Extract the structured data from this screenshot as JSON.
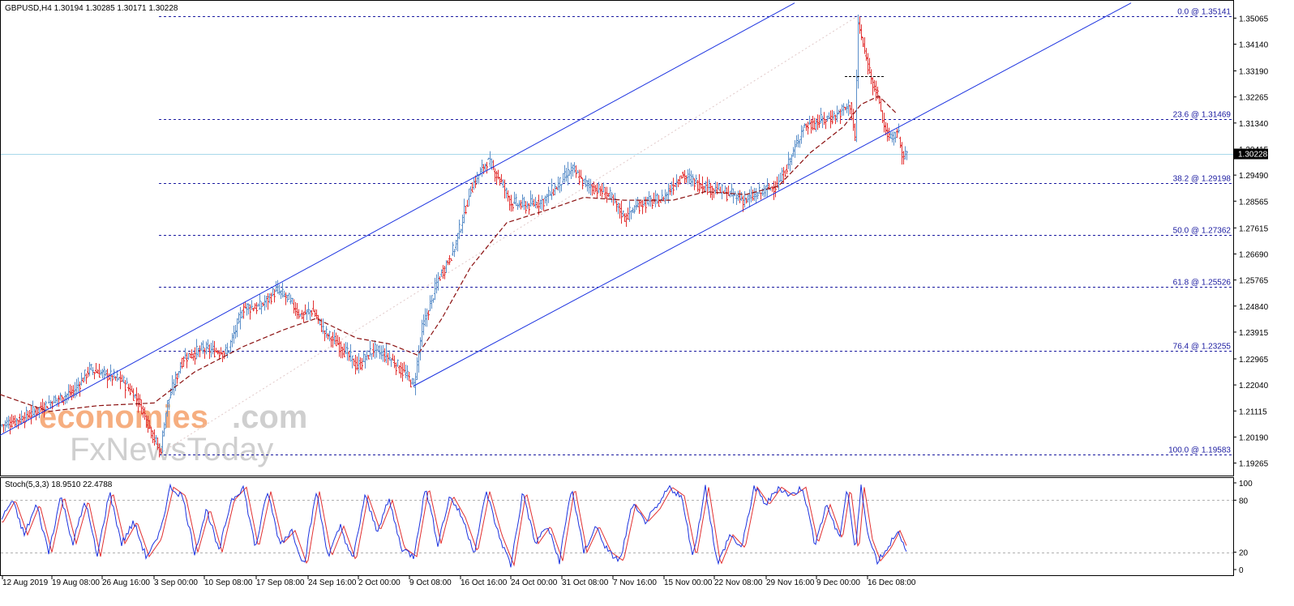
{
  "colors": {
    "up": "#5b8fc9",
    "down": "#e23030",
    "channel": "#1c33e0",
    "fib": "#1a1aa0",
    "ma": "#8b1010",
    "price_line": "#a8d8ea",
    "stoch_main": "#1c33e0",
    "stoch_signal": "#e23030",
    "price_box": "#000000",
    "watermark_orange": "#f5a06a",
    "watermark_gray": "#c7c7c7"
  },
  "watermark": {
    "line1_part1": "economies",
    "line1_part2": ".com",
    "line2": "FxNewsToday"
  },
  "chart_data": [
    {
      "type": "candlestick",
      "title": "GBPUSD,H4  1.30194 1.30285 1.30171 1.30228",
      "symbol": "GBPUSD",
      "timeframe": "H4",
      "ohlc_last": {
        "open": 1.30194,
        "high": 1.30285,
        "low": 1.30171,
        "close": 1.30228
      },
      "last_price_label": "1.30228",
      "ylim": [
        1.1885,
        1.3565
      ],
      "yticks": [
        "1.35065",
        "1.34140",
        "1.33190",
        "1.32265",
        "1.31340",
        "1.30415",
        "1.29490",
        "1.28565",
        "1.27615",
        "1.26690",
        "1.25765",
        "1.24840",
        "1.23915",
        "1.22965",
        "1.22040",
        "1.21115",
        "1.20190",
        "1.19265"
      ],
      "x_tick_labels": [
        "12 Aug 2019",
        "19 Aug 08:00",
        "26 Aug 16:00",
        "3 Sep 00:00",
        "10 Sep 08:00",
        "17 Sep 08:00",
        "24 Sep 16:00",
        "2 Oct 00:00",
        "9 Oct 08:00",
        "16 Oct 16:00",
        "24 Oct 00:00",
        "31 Oct 08:00",
        "7 Nov 16:00",
        "15 Nov 00:00",
        "22 Nov 08:00",
        "29 Nov 16:00",
        "9 Dec 00:00",
        "16 Dec 08:00"
      ],
      "price_anchors": [
        [
          0,
          1.206
        ],
        [
          30,
          1.209
        ],
        [
          60,
          1.214
        ],
        [
          90,
          1.218
        ],
        [
          110,
          1.226
        ],
        [
          130,
          1.224
        ],
        [
          150,
          1.222
        ],
        [
          170,
          1.215
        ],
        [
          185,
          1.205
        ],
        [
          197,
          1.196
        ],
        [
          205,
          1.213
        ],
        [
          225,
          1.23
        ],
        [
          250,
          1.233
        ],
        [
          280,
          1.232
        ],
        [
          300,
          1.248
        ],
        [
          320,
          1.248
        ],
        [
          340,
          1.254
        ],
        [
          355,
          1.251
        ],
        [
          370,
          1.245
        ],
        [
          385,
          1.247
        ],
        [
          400,
          1.239
        ],
        [
          420,
          1.234
        ],
        [
          440,
          1.227
        ],
        [
          460,
          1.233
        ],
        [
          480,
          1.23
        ],
        [
          500,
          1.224
        ],
        [
          510,
          1.22
        ],
        [
          520,
          1.24
        ],
        [
          540,
          1.258
        ],
        [
          560,
          1.269
        ],
        [
          580,
          1.29
        ],
        [
          600,
          1.3
        ],
        [
          615,
          1.294
        ],
        [
          630,
          1.285
        ],
        [
          650,
          1.284
        ],
        [
          670,
          1.286
        ],
        [
          690,
          1.292
        ],
        [
          705,
          1.297
        ],
        [
          720,
          1.292
        ],
        [
          750,
          1.288
        ],
        [
          770,
          1.28
        ],
        [
          790,
          1.285
        ],
        [
          815,
          1.286
        ],
        [
          840,
          1.295
        ],
        [
          860,
          1.292
        ],
        [
          880,
          1.29
        ],
        [
          900,
          1.288
        ],
        [
          920,
          1.286
        ],
        [
          940,
          1.289
        ],
        [
          960,
          1.292
        ],
        [
          975,
          1.301
        ],
        [
          990,
          1.312
        ],
        [
          1010,
          1.314
        ],
        [
          1030,
          1.316
        ],
        [
          1048,
          1.32
        ],
        [
          1054,
          1.308
        ],
        [
          1058,
          1.349
        ],
        [
          1066,
          1.338
        ],
        [
          1074,
          1.33
        ],
        [
          1082,
          1.323
        ],
        [
          1090,
          1.312
        ],
        [
          1100,
          1.307
        ],
        [
          1106,
          1.311
        ],
        [
          1114,
          1.301
        ],
        [
          1118,
          1.3023
        ]
      ],
      "moving_average_anchors": [
        [
          0,
          1.217
        ],
        [
          60,
          1.211
        ],
        [
          120,
          1.213
        ],
        [
          190,
          1.214
        ],
        [
          240,
          1.225
        ],
        [
          300,
          1.234
        ],
        [
          350,
          1.24
        ],
        [
          390,
          1.244
        ],
        [
          440,
          1.237
        ],
        [
          480,
          1.235
        ],
        [
          515,
          1.231
        ],
        [
          545,
          1.244
        ],
        [
          580,
          1.262
        ],
        [
          625,
          1.278
        ],
        [
          680,
          1.283
        ],
        [
          720,
          1.287
        ],
        [
          770,
          1.286
        ],
        [
          830,
          1.286
        ],
        [
          870,
          1.289
        ],
        [
          920,
          1.288
        ],
        [
          960,
          1.291
        ],
        [
          1000,
          1.303
        ],
        [
          1040,
          1.312
        ],
        [
          1062,
          1.32
        ],
        [
          1084,
          1.323
        ],
        [
          1105,
          1.317
        ]
      ],
      "channel_lines": [
        {
          "name": "upper",
          "from": [
            0,
            1.2025
          ],
          "to": [
            980,
            1.356
          ]
        },
        {
          "name": "lower",
          "from": [
            510,
            1.22
          ],
          "to": [
            1395,
            1.356
          ]
        }
      ],
      "fibonacci": [
        {
          "level": "0.0",
          "price": 1.35141,
          "label": "0.0 @ 1.35141"
        },
        {
          "level": "23.6",
          "price": 1.31469,
          "label": "23.6 @ 1.31469"
        },
        {
          "level": "38.2",
          "price": 1.29198,
          "label": "38.2 @ 1.29198"
        },
        {
          "level": "50.0",
          "price": 1.27362,
          "label": "50.0 @ 1.27362"
        },
        {
          "level": "61.8",
          "price": 1.25526,
          "label": "61.8 @ 1.25526"
        },
        {
          "level": "76.4",
          "price": 1.23255,
          "label": "76.4 @ 1.23255"
        },
        {
          "level": "100.0",
          "price": 1.19583,
          "label": "100.0 @ 1.19583"
        }
      ],
      "short_level": {
        "from_x": 1042,
        "to_x": 1092,
        "price": 1.33
      },
      "trend_dotted": {
        "from": [
          197,
          1.196
        ],
        "to": [
          1058,
          1.3514
        ]
      }
    },
    {
      "type": "line",
      "title": "Stoch(5,3,3) 18.9510 22.4788",
      "indicator": "Stochastic Oscillator",
      "params": "5,3,3",
      "main_value": 18.951,
      "signal_value": 22.4788,
      "ylim": [
        0,
        100
      ],
      "yticks": [
        "100",
        "80",
        "20",
        "0"
      ],
      "levels": [
        80,
        20
      ],
      "stoch_anchors": [
        [
          0,
          55
        ],
        [
          15,
          80
        ],
        [
          30,
          40
        ],
        [
          45,
          75
        ],
        [
          60,
          20
        ],
        [
          75,
          85
        ],
        [
          90,
          30
        ],
        [
          105,
          80
        ],
        [
          120,
          15
        ],
        [
          135,
          90
        ],
        [
          150,
          30
        ],
        [
          165,
          55
        ],
        [
          180,
          15
        ],
        [
          195,
          35
        ],
        [
          210,
          95
        ],
        [
          225,
          85
        ],
        [
          240,
          20
        ],
        [
          255,
          70
        ],
        [
          270,
          20
        ],
        [
          285,
          80
        ],
        [
          300,
          95
        ],
        [
          315,
          25
        ],
        [
          330,
          90
        ],
        [
          345,
          30
        ],
        [
          360,
          45
        ],
        [
          375,
          5
        ],
        [
          390,
          90
        ],
        [
          405,
          15
        ],
        [
          420,
          50
        ],
        [
          435,
          10
        ],
        [
          450,
          85
        ],
        [
          465,
          45
        ],
        [
          480,
          80
        ],
        [
          495,
          25
        ],
        [
          510,
          15
        ],
        [
          525,
          95
        ],
        [
          540,
          30
        ],
        [
          555,
          85
        ],
        [
          570,
          60
        ],
        [
          585,
          20
        ],
        [
          600,
          90
        ],
        [
          615,
          40
        ],
        [
          630,
          5
        ],
        [
          645,
          90
        ],
        [
          660,
          30
        ],
        [
          675,
          50
        ],
        [
          690,
          10
        ],
        [
          705,
          95
        ],
        [
          720,
          20
        ],
        [
          735,
          50
        ],
        [
          750,
          20
        ],
        [
          765,
          10
        ],
        [
          780,
          75
        ],
        [
          795,
          55
        ],
        [
          810,
          70
        ],
        [
          825,
          95
        ],
        [
          840,
          85
        ],
        [
          855,
          15
        ],
        [
          870,
          95
        ],
        [
          885,
          5
        ],
        [
          900,
          40
        ],
        [
          915,
          25
        ],
        [
          930,
          95
        ],
        [
          945,
          75
        ],
        [
          960,
          95
        ],
        [
          975,
          85
        ],
        [
          990,
          95
        ],
        [
          1005,
          30
        ],
        [
          1020,
          75
        ],
        [
          1035,
          35
        ],
        [
          1045,
          95
        ],
        [
          1055,
          20
        ],
        [
          1062,
          95
        ],
        [
          1072,
          35
        ],
        [
          1082,
          10
        ],
        [
          1095,
          25
        ],
        [
          1106,
          45
        ],
        [
          1118,
          19
        ]
      ]
    }
  ]
}
